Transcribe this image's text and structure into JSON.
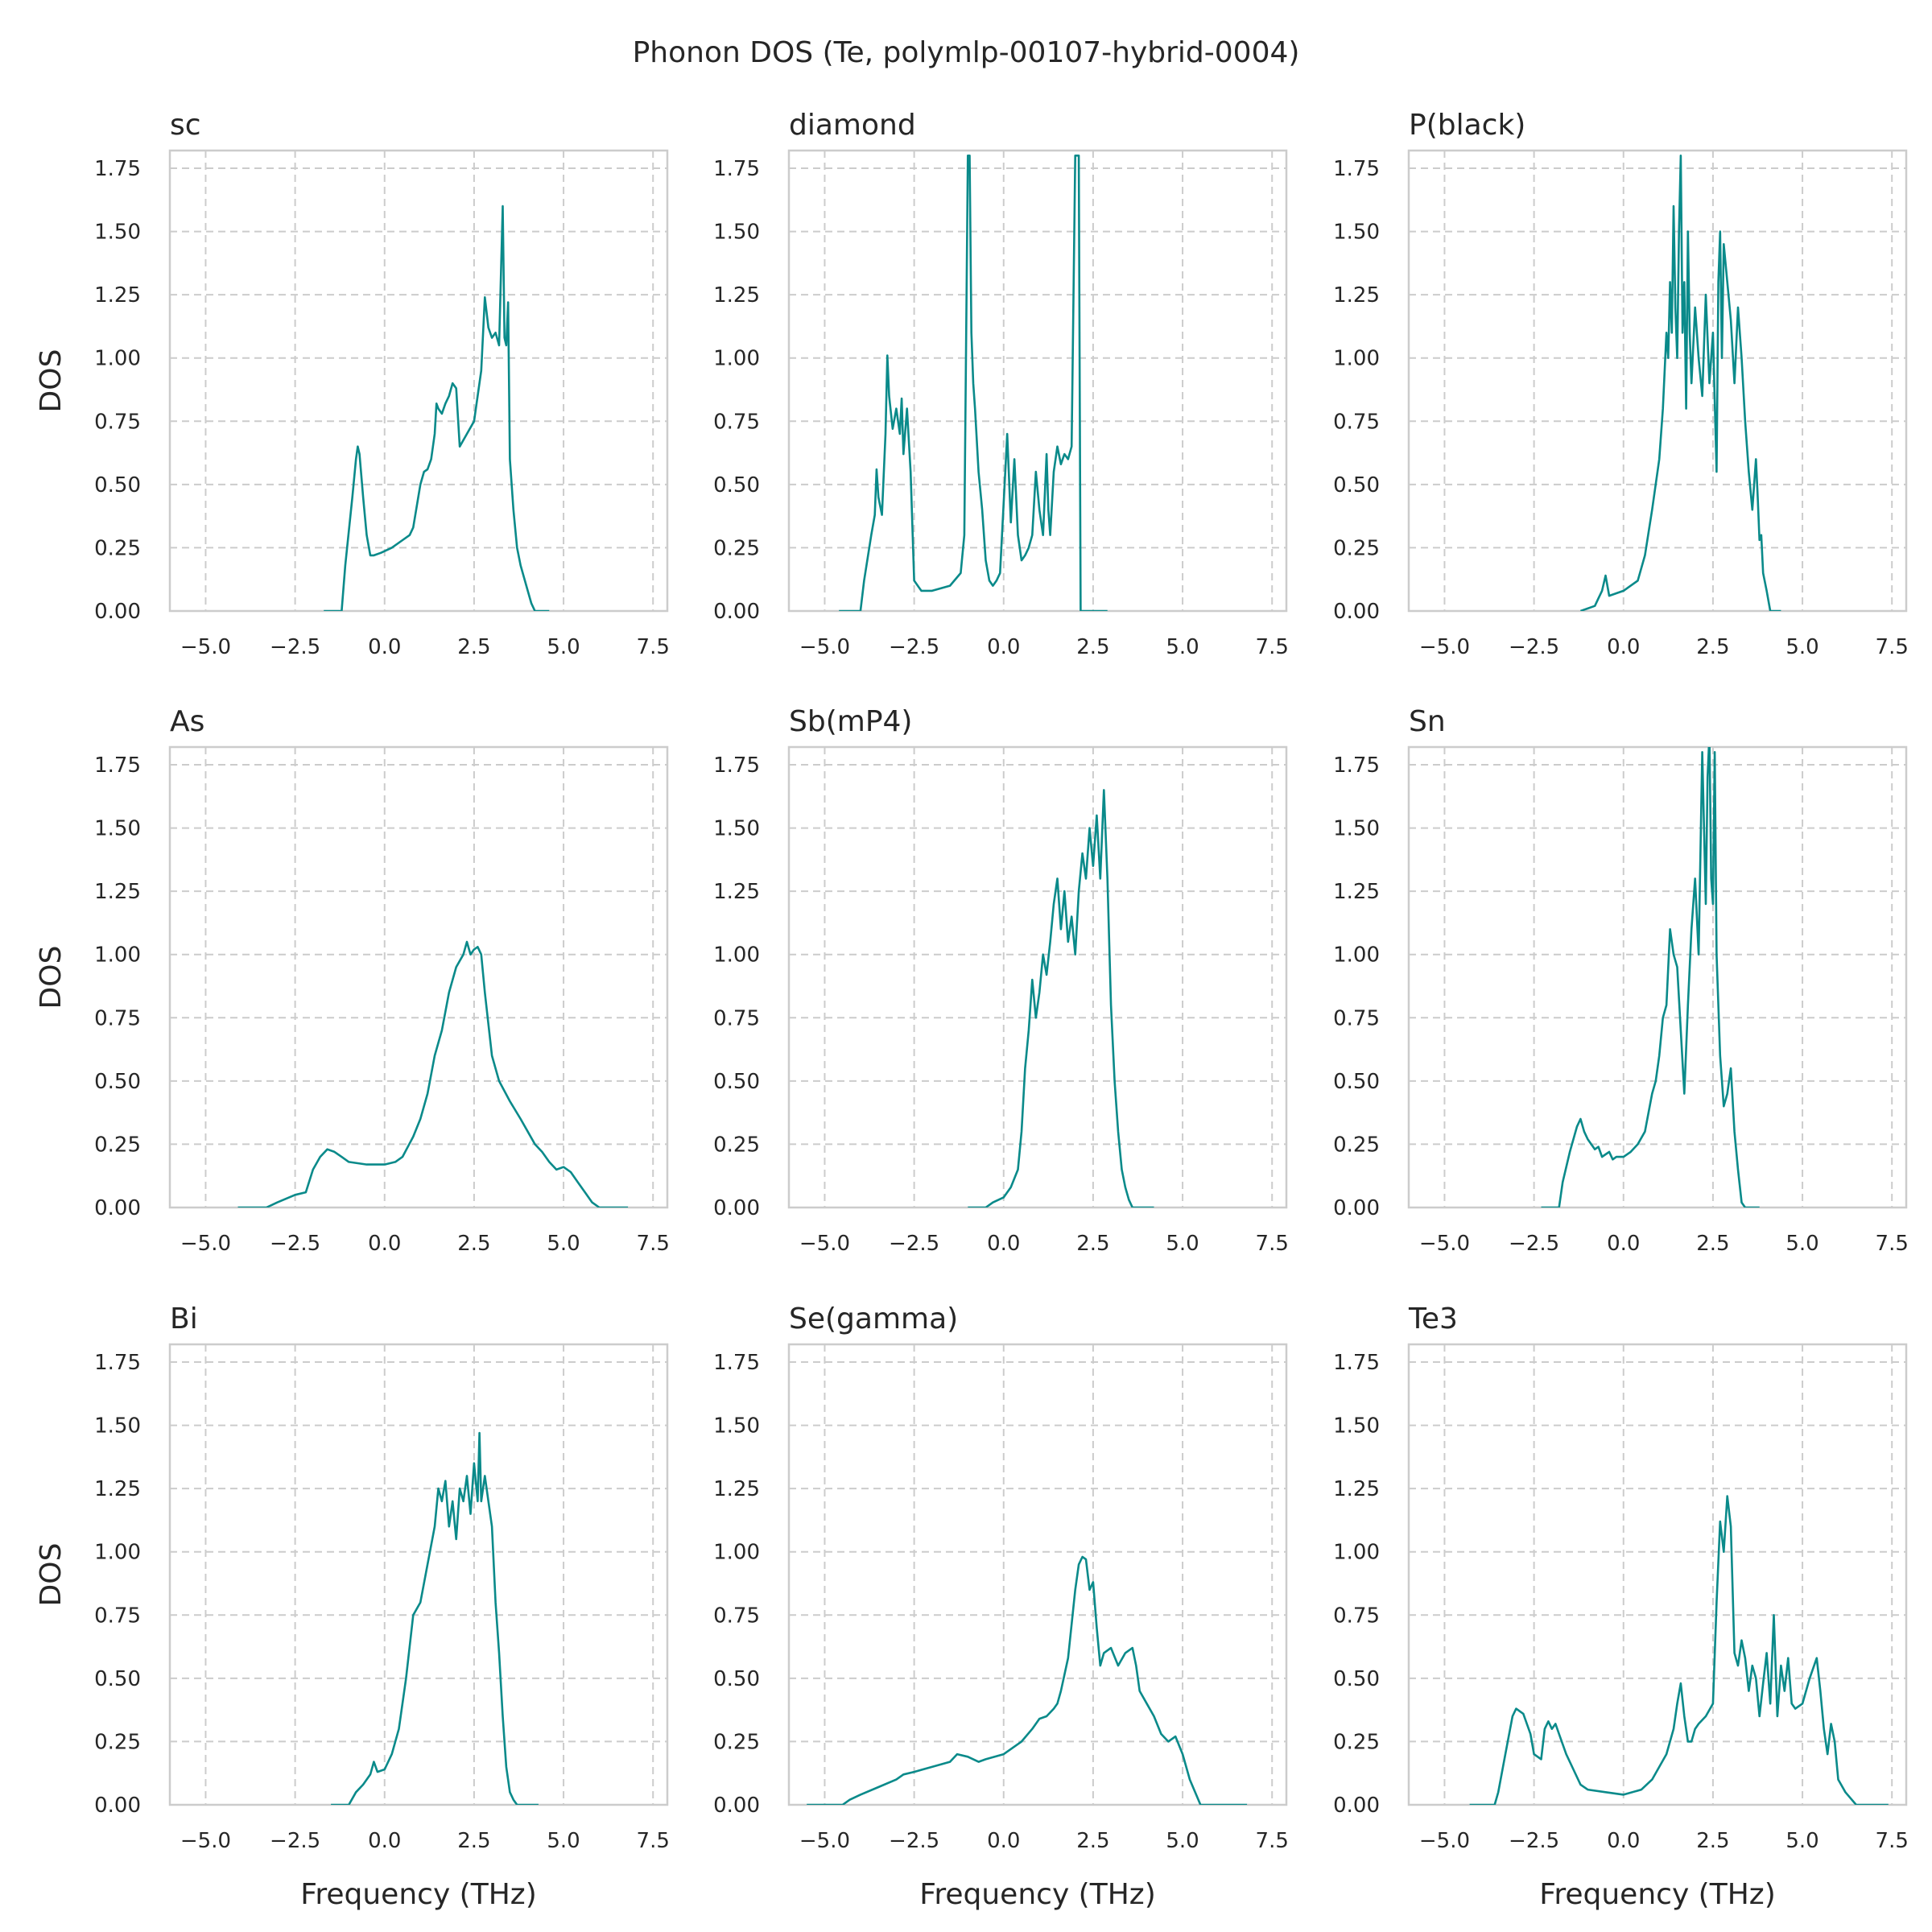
{
  "chart_data": {
    "type": "line",
    "title": "Phonon DOS (Te, polymlp-00107-hybrid-0004)",
    "xlabel": "Frequency (THz)",
    "ylabel": "DOS",
    "xlim": [
      -6.0,
      7.9
    ],
    "ylim": [
      0,
      1.82
    ],
    "xticks": [
      "−5.0",
      "−2.5",
      "0.0",
      "2.5",
      "5.0",
      "7.5"
    ],
    "xtick_values": [
      -5,
      -2.5,
      0,
      2.5,
      5,
      7.5
    ],
    "yticks": [
      "0.00",
      "0.25",
      "0.50",
      "0.75",
      "1.00",
      "1.25",
      "1.50",
      "1.75"
    ],
    "ytick_values": [
      0,
      0.25,
      0.5,
      0.75,
      1.0,
      1.25,
      1.5,
      1.75
    ],
    "grid": true,
    "line_color": "#0a8a8a",
    "panels": [
      {
        "title": "sc",
        "x": [
          -1.7,
          -1.2,
          -1.1,
          -0.9,
          -0.8,
          -0.75,
          -0.7,
          -0.6,
          -0.5,
          -0.4,
          -0.3,
          -0.1,
          0.2,
          0.5,
          0.7,
          0.8,
          1.0,
          1.1,
          1.2,
          1.3,
          1.4,
          1.45,
          1.5,
          1.6,
          1.7,
          1.8,
          1.9,
          2.0,
          2.1,
          2.3,
          2.5,
          2.7,
          2.8,
          2.9,
          3.0,
          3.1,
          3.2,
          3.3,
          3.35,
          3.4,
          3.45,
          3.5,
          3.6,
          3.7,
          3.8,
          4.0,
          4.1,
          4.2,
          4.3,
          4.6
        ],
        "y": [
          0,
          0,
          0.18,
          0.45,
          0.6,
          0.65,
          0.62,
          0.45,
          0.3,
          0.22,
          0.22,
          0.23,
          0.25,
          0.28,
          0.3,
          0.33,
          0.5,
          0.55,
          0.56,
          0.6,
          0.7,
          0.82,
          0.8,
          0.78,
          0.82,
          0.85,
          0.9,
          0.88,
          0.65,
          0.7,
          0.75,
          0.95,
          1.24,
          1.12,
          1.08,
          1.1,
          1.05,
          1.6,
          1.08,
          1.05,
          1.22,
          0.6,
          0.4,
          0.25,
          0.18,
          0.08,
          0.03,
          0,
          0,
          0
        ]
      },
      {
        "title": "diamond",
        "x": [
          -4.6,
          -4.0,
          -3.9,
          -3.7,
          -3.6,
          -3.55,
          -3.5,
          -3.4,
          -3.3,
          -3.25,
          -3.2,
          -3.1,
          -3.0,
          -2.9,
          -2.85,
          -2.8,
          -2.7,
          -2.6,
          -2.5,
          -2.3,
          -2.0,
          -1.5,
          -1.2,
          -1.1,
          -1.0,
          -0.95,
          -0.9,
          -0.85,
          -0.8,
          -0.7,
          -0.6,
          -0.5,
          -0.4,
          -0.3,
          -0.2,
          -0.1,
          0.1,
          0.2,
          0.3,
          0.4,
          0.5,
          0.6,
          0.7,
          0.8,
          0.9,
          1.0,
          1.1,
          1.2,
          1.25,
          1.3,
          1.4,
          1.5,
          1.6,
          1.7,
          1.8,
          1.9,
          2.0,
          2.1,
          2.15,
          2.25,
          2.5,
          2.9
        ],
        "y": [
          0,
          0,
          0.12,
          0.3,
          0.38,
          0.56,
          0.45,
          0.38,
          0.7,
          1.01,
          0.85,
          0.72,
          0.8,
          0.7,
          0.84,
          0.62,
          0.8,
          0.55,
          0.12,
          0.08,
          0.08,
          0.1,
          0.15,
          0.3,
          1.8,
          1.8,
          1.1,
          0.9,
          0.8,
          0.55,
          0.4,
          0.2,
          0.12,
          0.1,
          0.12,
          0.15,
          0.7,
          0.35,
          0.6,
          0.3,
          0.2,
          0.22,
          0.25,
          0.3,
          0.55,
          0.4,
          0.3,
          0.62,
          0.4,
          0.3,
          0.55,
          0.65,
          0.58,
          0.62,
          0.6,
          0.65,
          1.8,
          1.8,
          0,
          0,
          0,
          0
        ]
      },
      {
        "title": "P(black)",
        "x": [
          -1.2,
          -0.8,
          -0.7,
          -0.6,
          -0.5,
          -0.4,
          -0.2,
          0.0,
          0.2,
          0.4,
          0.6,
          0.8,
          1.0,
          1.1,
          1.2,
          1.25,
          1.3,
          1.35,
          1.4,
          1.45,
          1.5,
          1.55,
          1.6,
          1.65,
          1.7,
          1.75,
          1.8,
          1.85,
          1.9,
          2.0,
          2.1,
          2.2,
          2.3,
          2.4,
          2.5,
          2.6,
          2.65,
          2.7,
          2.75,
          2.8,
          2.9,
          3.0,
          3.1,
          3.2,
          3.3,
          3.4,
          3.5,
          3.6,
          3.7,
          3.75,
          3.8,
          3.85,
          3.9,
          4.0,
          4.1,
          4.4
        ],
        "y": [
          0,
          0.02,
          0.05,
          0.08,
          0.14,
          0.06,
          0.07,
          0.08,
          0.1,
          0.12,
          0.22,
          0.4,
          0.6,
          0.8,
          1.1,
          1.0,
          1.3,
          1.1,
          1.6,
          1.2,
          1.0,
          1.5,
          1.8,
          1.1,
          1.3,
          0.8,
          1.5,
          1.1,
          0.9,
          1.2,
          1.0,
          0.85,
          1.25,
          0.9,
          1.1,
          0.55,
          1.3,
          1.5,
          1.0,
          1.45,
          1.3,
          1.15,
          0.9,
          1.2,
          1.0,
          0.75,
          0.55,
          0.4,
          0.6,
          0.45,
          0.28,
          0.3,
          0.15,
          0.08,
          0,
          0
        ]
      },
      {
        "title": "As",
        "x": [
          -4.1,
          -3.3,
          -3.0,
          -2.5,
          -2.2,
          -2.0,
          -1.8,
          -1.6,
          -1.4,
          -1.2,
          -1.0,
          -0.5,
          0.0,
          0.3,
          0.5,
          0.8,
          1.0,
          1.2,
          1.4,
          1.6,
          1.8,
          2.0,
          2.2,
          2.3,
          2.4,
          2.5,
          2.6,
          2.7,
          2.8,
          3.0,
          3.2,
          3.5,
          3.8,
          4.0,
          4.2,
          4.4,
          4.6,
          4.8,
          5.0,
          5.2,
          5.4,
          5.6,
          5.8,
          6.0,
          6.8
        ],
        "y": [
          0,
          0,
          0.02,
          0.05,
          0.06,
          0.15,
          0.2,
          0.23,
          0.22,
          0.2,
          0.18,
          0.17,
          0.17,
          0.18,
          0.2,
          0.28,
          0.35,
          0.45,
          0.6,
          0.7,
          0.85,
          0.95,
          1.0,
          1.05,
          1.0,
          1.02,
          1.03,
          1.0,
          0.85,
          0.6,
          0.5,
          0.42,
          0.35,
          0.3,
          0.25,
          0.22,
          0.18,
          0.15,
          0.16,
          0.14,
          0.1,
          0.06,
          0.02,
          0,
          0
        ]
      },
      {
        "title": "Sb(mP4)",
        "x": [
          -1.0,
          -0.5,
          -0.3,
          0.0,
          0.2,
          0.4,
          0.5,
          0.6,
          0.7,
          0.8,
          0.9,
          1.0,
          1.1,
          1.2,
          1.3,
          1.4,
          1.5,
          1.6,
          1.7,
          1.8,
          1.9,
          2.0,
          2.1,
          2.2,
          2.3,
          2.4,
          2.5,
          2.6,
          2.7,
          2.8,
          2.9,
          3.0,
          3.1,
          3.2,
          3.3,
          3.4,
          3.5,
          3.6,
          3.8,
          4.2
        ],
        "y": [
          0,
          0,
          0.02,
          0.04,
          0.08,
          0.15,
          0.3,
          0.55,
          0.7,
          0.9,
          0.75,
          0.85,
          1.0,
          0.92,
          1.05,
          1.2,
          1.3,
          1.1,
          1.25,
          1.05,
          1.15,
          1.0,
          1.25,
          1.4,
          1.3,
          1.5,
          1.35,
          1.55,
          1.3,
          1.65,
          1.3,
          0.8,
          0.5,
          0.3,
          0.15,
          0.08,
          0.03,
          0,
          0,
          0
        ]
      },
      {
        "title": "Sn",
        "x": [
          -2.3,
          -1.8,
          -1.7,
          -1.5,
          -1.3,
          -1.2,
          -1.1,
          -1.0,
          -0.9,
          -0.8,
          -0.7,
          -0.6,
          -0.5,
          -0.4,
          -0.3,
          -0.2,
          0.0,
          0.2,
          0.4,
          0.6,
          0.8,
          0.9,
          1.0,
          1.1,
          1.2,
          1.3,
          1.4,
          1.5,
          1.6,
          1.7,
          1.8,
          1.9,
          2.0,
          2.1,
          2.2,
          2.25,
          2.3,
          2.35,
          2.4,
          2.45,
          2.5,
          2.55,
          2.6,
          2.7,
          2.8,
          2.9,
          3.0,
          3.1,
          3.2,
          3.3,
          3.4,
          3.8
        ],
        "y": [
          0,
          0,
          0.1,
          0.22,
          0.32,
          0.35,
          0.3,
          0.27,
          0.25,
          0.23,
          0.24,
          0.2,
          0.21,
          0.22,
          0.19,
          0.2,
          0.2,
          0.22,
          0.25,
          0.3,
          0.45,
          0.5,
          0.6,
          0.75,
          0.8,
          1.1,
          1.0,
          0.95,
          0.7,
          0.45,
          0.8,
          1.1,
          1.3,
          1.0,
          1.8,
          1.5,
          1.2,
          1.7,
          1.9,
          1.3,
          1.2,
          1.8,
          1.0,
          0.6,
          0.4,
          0.45,
          0.55,
          0.3,
          0.15,
          0.02,
          0,
          0
        ]
      },
      {
        "title": "Bi",
        "x": [
          -1.5,
          -1.0,
          -0.8,
          -0.6,
          -0.4,
          -0.3,
          -0.2,
          0.0,
          0.2,
          0.4,
          0.6,
          0.8,
          1.0,
          1.2,
          1.4,
          1.5,
          1.6,
          1.7,
          1.8,
          1.9,
          2.0,
          2.1,
          2.2,
          2.3,
          2.4,
          2.5,
          2.6,
          2.65,
          2.7,
          2.8,
          2.9,
          3.0,
          3.1,
          3.2,
          3.3,
          3.4,
          3.5,
          3.6,
          3.7,
          4.3
        ],
        "y": [
          0,
          0,
          0.05,
          0.08,
          0.12,
          0.17,
          0.13,
          0.14,
          0.2,
          0.3,
          0.5,
          0.75,
          0.8,
          0.95,
          1.1,
          1.25,
          1.2,
          1.28,
          1.1,
          1.2,
          1.05,
          1.25,
          1.2,
          1.3,
          1.15,
          1.35,
          1.2,
          1.47,
          1.2,
          1.3,
          1.2,
          1.1,
          0.8,
          0.6,
          0.35,
          0.15,
          0.05,
          0.02,
          0,
          0
        ]
      },
      {
        "title": "Se(gamma)",
        "x": [
          -5.5,
          -4.5,
          -4.3,
          -4.0,
          -3.5,
          -3.0,
          -2.8,
          -2.5,
          -2.0,
          -1.5,
          -1.3,
          -1.0,
          -0.7,
          -0.5,
          0.0,
          0.5,
          0.8,
          1.0,
          1.2,
          1.4,
          1.5,
          1.6,
          1.8,
          2.0,
          2.1,
          2.2,
          2.3,
          2.4,
          2.5,
          2.6,
          2.7,
          2.8,
          3.0,
          3.2,
          3.4,
          3.6,
          3.7,
          3.8,
          4.0,
          4.2,
          4.4,
          4.6,
          4.8,
          5.0,
          5.2,
          5.5,
          5.8,
          6.8
        ],
        "y": [
          0,
          0,
          0.02,
          0.04,
          0.07,
          0.1,
          0.12,
          0.13,
          0.15,
          0.17,
          0.2,
          0.19,
          0.17,
          0.18,
          0.2,
          0.25,
          0.3,
          0.34,
          0.35,
          0.38,
          0.4,
          0.45,
          0.58,
          0.85,
          0.95,
          0.98,
          0.97,
          0.85,
          0.88,
          0.7,
          0.55,
          0.6,
          0.62,
          0.55,
          0.6,
          0.62,
          0.55,
          0.45,
          0.4,
          0.35,
          0.28,
          0.25,
          0.27,
          0.2,
          0.1,
          0,
          0,
          0
        ]
      },
      {
        "title": "Te3",
        "x": [
          -4.3,
          -3.6,
          -3.5,
          -3.3,
          -3.1,
          -3.0,
          -2.8,
          -2.6,
          -2.5,
          -2.3,
          -2.2,
          -2.1,
          -2.0,
          -1.9,
          -1.8,
          -1.6,
          -1.4,
          -1.2,
          -1.0,
          -0.5,
          0.0,
          0.5,
          0.8,
          1.0,
          1.2,
          1.4,
          1.5,
          1.6,
          1.7,
          1.8,
          1.9,
          2.0,
          2.1,
          2.3,
          2.5,
          2.6,
          2.7,
          2.8,
          2.9,
          3.0,
          3.1,
          3.2,
          3.3,
          3.4,
          3.5,
          3.6,
          3.7,
          3.8,
          3.9,
          4.0,
          4.1,
          4.2,
          4.3,
          4.4,
          4.5,
          4.6,
          4.7,
          4.8,
          5.0,
          5.2,
          5.4,
          5.5,
          5.6,
          5.7,
          5.8,
          5.9,
          6.0,
          6.2,
          6.5,
          7.4
        ],
        "y": [
          0,
          0,
          0.05,
          0.2,
          0.35,
          0.38,
          0.36,
          0.28,
          0.2,
          0.18,
          0.3,
          0.33,
          0.3,
          0.32,
          0.28,
          0.2,
          0.14,
          0.08,
          0.06,
          0.05,
          0.04,
          0.06,
          0.1,
          0.15,
          0.2,
          0.3,
          0.4,
          0.48,
          0.35,
          0.25,
          0.25,
          0.3,
          0.32,
          0.35,
          0.4,
          0.8,
          1.12,
          1.0,
          1.22,
          1.1,
          0.6,
          0.55,
          0.65,
          0.58,
          0.45,
          0.55,
          0.5,
          0.35,
          0.48,
          0.6,
          0.4,
          0.75,
          0.35,
          0.55,
          0.45,
          0.58,
          0.4,
          0.38,
          0.4,
          0.5,
          0.58,
          0.45,
          0.3,
          0.2,
          0.32,
          0.25,
          0.1,
          0.05,
          0,
          0
        ]
      }
    ]
  }
}
